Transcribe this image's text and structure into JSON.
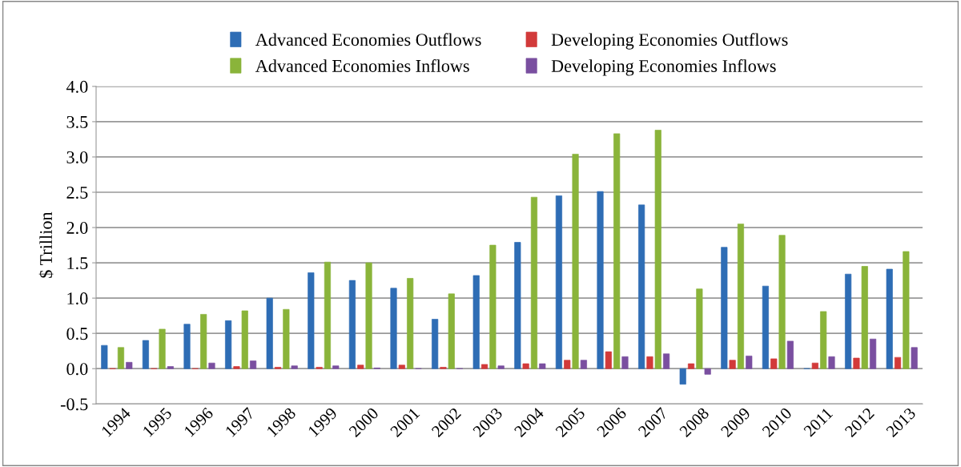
{
  "chart_data": {
    "type": "bar",
    "ylabel": "$ Trillion",
    "categories": [
      "1994",
      "1995",
      "1996",
      "1997",
      "1998",
      "1999",
      "2000",
      "2001",
      "2002",
      "2003",
      "2004",
      "2005",
      "2006",
      "2007",
      "2008",
      "2009",
      "2010",
      "2011",
      "2012",
      "2013"
    ],
    "series": [
      {
        "name": "Advanced Economies Outflows",
        "color": "#2e6db5",
        "values": [
          0.33,
          0.4,
          0.63,
          0.68,
          1.0,
          1.36,
          1.25,
          1.14,
          0.7,
          1.32,
          1.79,
          2.45,
          2.51,
          2.32,
          -0.22,
          1.72,
          1.17,
          0.0,
          1.34,
          1.41
        ]
      },
      {
        "name": "Developing Economies Outflows",
        "color": "#d23a3a",
        "values": [
          0.0,
          0.0,
          0.0,
          0.03,
          0.02,
          0.02,
          0.05,
          0.05,
          0.02,
          0.06,
          0.07,
          0.12,
          0.24,
          0.17,
          0.07,
          0.12,
          0.14,
          0.08,
          0.15,
          0.16
        ]
      },
      {
        "name": "Advanced Economies Inflows",
        "color": "#8ab43a",
        "values": [
          0.3,
          0.56,
          0.77,
          0.82,
          0.84,
          1.51,
          1.5,
          1.28,
          1.06,
          1.75,
          2.43,
          3.04,
          3.33,
          3.38,
          1.13,
          2.05,
          1.89,
          0.81,
          1.45,
          1.66
        ]
      },
      {
        "name": "Developing Economies Inflows",
        "color": "#7a4fa0",
        "values": [
          0.09,
          0.03,
          0.08,
          0.11,
          0.04,
          0.04,
          0.01,
          0.0,
          0.0,
          0.04,
          0.07,
          0.12,
          0.17,
          0.21,
          -0.08,
          0.18,
          0.39,
          0.17,
          0.42,
          0.3
        ]
      }
    ],
    "ylim": [
      -0.5,
      4.0
    ],
    "yticks": [
      {
        "value": -0.5,
        "label": "-0.5"
      },
      {
        "value": 0,
        "label": "0.0"
      },
      {
        "value": 0.5,
        "label": "0.5"
      },
      {
        "value": 1,
        "label": "1.0"
      },
      {
        "value": 1.5,
        "label": "1.5"
      },
      {
        "value": 2,
        "label": "2.0"
      },
      {
        "value": 2.5,
        "label": "2.5"
      },
      {
        "value": 3,
        "label": "3.0"
      },
      {
        "value": 3.5,
        "label": "3.5"
      },
      {
        "value": 4,
        "label": "4.0"
      }
    ],
    "grid": "y",
    "legend": "top"
  }
}
